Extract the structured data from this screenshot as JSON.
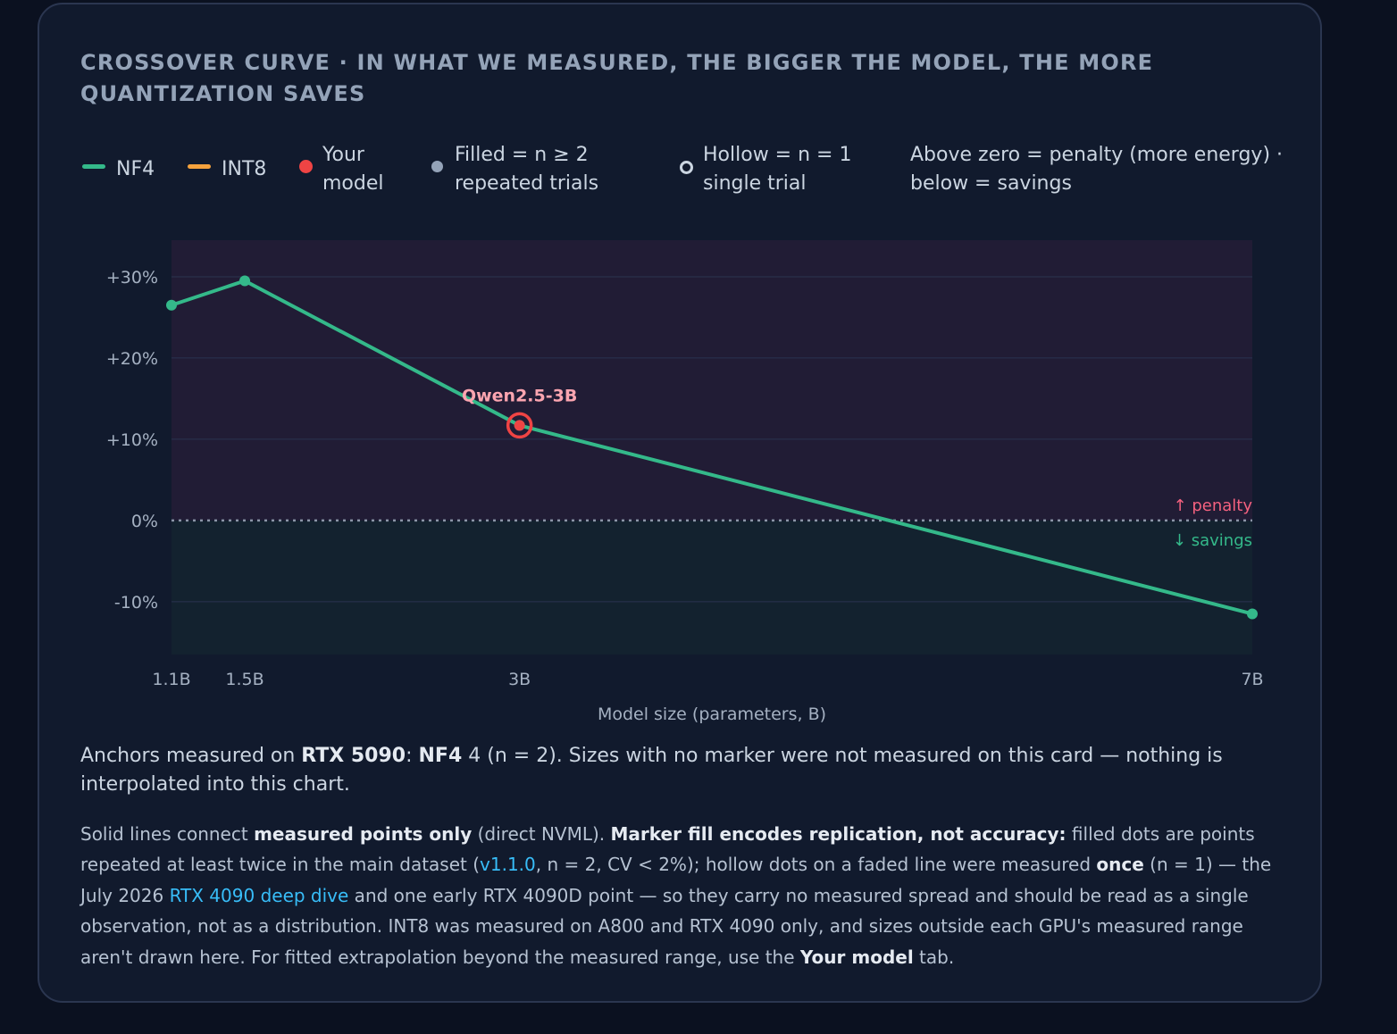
{
  "title": "CROSSOVER CURVE · IN WHAT WE MEASURED, THE BIGGER THE MODEL, THE MORE QUANTIZATION SAVES",
  "legend": {
    "nf4": "NF4",
    "int8": "INT8",
    "your_model": "Your model",
    "filled": "Filled = n ≥ 2 repeated trials",
    "hollow": "Hollow = n = 1 single trial",
    "direction": "Above zero = penalty (more energy) · below = savings"
  },
  "colors": {
    "nf4": "#34b98a",
    "int8": "#f5a23d",
    "your_model": "#ef4444",
    "penalty": "#f4617f",
    "savings": "#34b98a",
    "link": "#38bdf8"
  },
  "chart_data": {
    "type": "line",
    "xlabel": "Model size (parameters, B)",
    "ylabel": "",
    "x_ticks": [
      {
        "value": 1.1,
        "label": "1.1B"
      },
      {
        "value": 1.5,
        "label": "1.5B"
      },
      {
        "value": 3,
        "label": "3B"
      },
      {
        "value": 7,
        "label": "7B"
      }
    ],
    "y_ticks": [
      {
        "value": 30,
        "label": "+30%"
      },
      {
        "value": 20,
        "label": "+20%"
      },
      {
        "value": 10,
        "label": "+10%"
      },
      {
        "value": 0,
        "label": "0%"
      },
      {
        "value": -10,
        "label": "-10%"
      }
    ],
    "xlim": [
      1.1,
      7
    ],
    "ylim": [
      -16.5,
      34.5
    ],
    "series": [
      {
        "name": "NF4",
        "points": [
          {
            "x": 1.1,
            "y": 26.5
          },
          {
            "x": 1.5,
            "y": 29.5
          },
          {
            "x": 3,
            "y": 11.7
          },
          {
            "x": 7,
            "y": -11.5
          }
        ]
      }
    ],
    "highlight": {
      "label": "Qwen2.5-3B",
      "x": 3,
      "y": 11.7
    },
    "zone_labels": {
      "above": "↑ penalty",
      "below": "↓ savings"
    },
    "grid": true
  },
  "note1": {
    "t1": "Anchors measured on ",
    "b1": "RTX 5090",
    "t2": ": ",
    "b2": "NF4",
    "t3": " 4 (n = 2). Sizes with no marker were not measured on this card — nothing is interpolated into this chart."
  },
  "note2": {
    "t1": "Solid lines connect ",
    "b1": "measured points only",
    "t2": " (direct NVML). ",
    "b2": "Marker fill encodes replication, not accuracy:",
    "t3": " filled dots are points repeated at least twice in the main dataset (",
    "link1": "v1.1.0",
    "t4": ", n = 2, CV < 2%); hollow dots on a faded line were measured ",
    "b3": "once",
    "t5": " (n = 1) — the July 2026 ",
    "link2": "RTX 4090 deep dive",
    "t6": " and one early RTX 4090D point — so they carry no measured spread and should be read as a single observation, not as a distribution. INT8 was measured on A800 and RTX 4090 only, and sizes outside each GPU's measured range aren't drawn here. For fitted extrapolation beyond the measured range, use the ",
    "b4": "Your model",
    "t7": " tab."
  }
}
